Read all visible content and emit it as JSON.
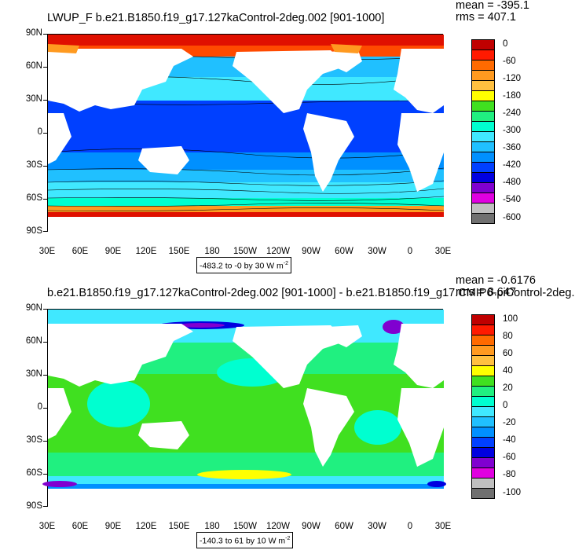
{
  "top": {
    "title": "LWUP_F b.e21.B1850.f19_g17.127kaControl-2deg.002 [901-1000]",
    "mean": "mean = -395.1",
    "rms": "rms = 407.1",
    "range": "-483.2 to -0 by 30  W m",
    "range_exp": "-2",
    "colorbar_labels": [
      "0",
      "-60",
      "-120",
      "-180",
      "-240",
      "-300",
      "-360",
      "-420",
      "-480",
      "-540",
      "-600"
    ],
    "colorbar_colors": [
      "#c00000",
      "#ff1a00",
      "#ff6a00",
      "#ff9a20",
      "#ffc040",
      "#ffff00",
      "#40e020",
      "#20f080",
      "#00ffd0",
      "#40e8ff",
      "#20c0ff",
      "#0090ff",
      "#0040ff",
      "#0000e0",
      "#8000d0",
      "#e000e0",
      "#c0c0c0",
      "#707070"
    ]
  },
  "bottom": {
    "title": "b.e21.B1850.f19_g17.127kaControl-2deg.002 [901-1000] - b.e21.B1850.f19_g17.CMIP6-piControl-2deg.",
    "mean": "mean = -0.6176",
    "rms": "rms = 8.647",
    "range": "-140.3 to 61 by 10  W m",
    "range_exp": "-2",
    "colorbar_labels": [
      "100",
      "80",
      "60",
      "40",
      "20",
      "0",
      "-20",
      "-40",
      "-60",
      "-80",
      "-100"
    ],
    "colorbar_colors": [
      "#c00000",
      "#ff1a00",
      "#ff6a00",
      "#ff9a20",
      "#ffc040",
      "#ffff00",
      "#40e020",
      "#20f080",
      "#00ffd0",
      "#40e8ff",
      "#20c0ff",
      "#0090ff",
      "#0040ff",
      "#0000e0",
      "#8000d0",
      "#e000e0",
      "#c0c0c0",
      "#707070"
    ]
  },
  "axes": {
    "lat_labels": [
      "90N",
      "60N",
      "30N",
      "0",
      "30S",
      "60S",
      "90S"
    ],
    "lon_labels": [
      "30E",
      "60E",
      "90E",
      "120E",
      "150E",
      "180",
      "150W",
      "120W",
      "90W",
      "60W",
      "30W",
      "0",
      "30E"
    ]
  }
}
